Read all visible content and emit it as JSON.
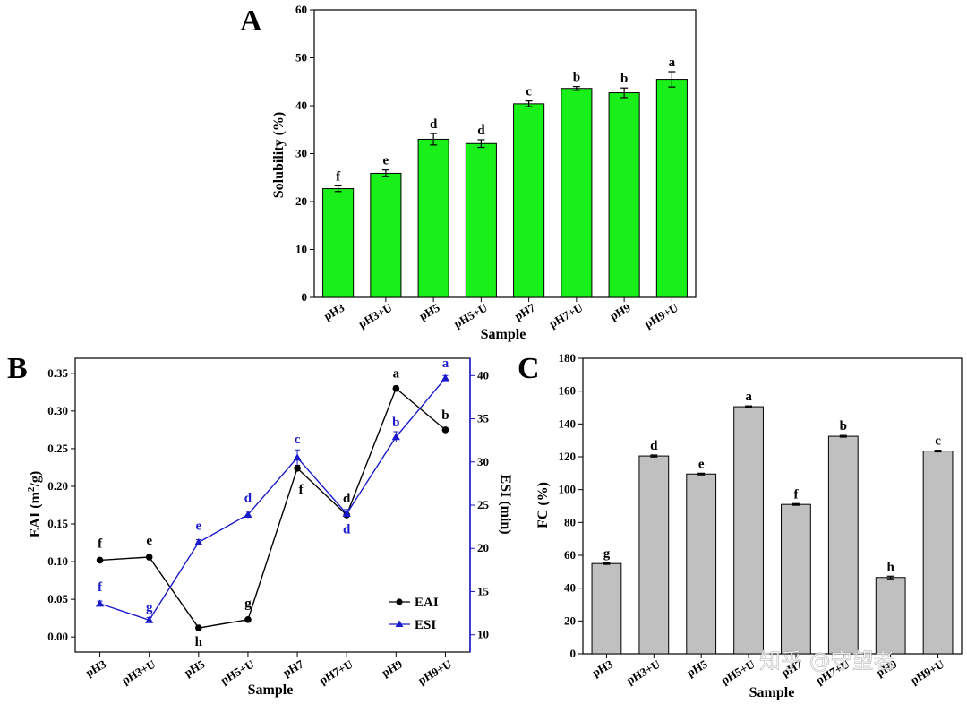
{
  "chart_data": [
    {
      "panel": "A",
      "type": "bar",
      "categories": [
        "pH3",
        "pH3+U",
        "pH5",
        "pH5+U",
        "pH7",
        "pH7+U",
        "pH9",
        "pH9+U"
      ],
      "values": [
        22.7,
        25.9,
        33.0,
        32.1,
        40.4,
        43.6,
        42.7,
        45.5
      ],
      "errors": [
        0.6,
        0.7,
        1.2,
        0.8,
        0.6,
        0.4,
        1.0,
        1.6
      ],
      "significance": [
        "f",
        "e",
        "d",
        "d",
        "c",
        "b",
        "b",
        "a"
      ],
      "xlabel": "Sample",
      "ylabel": "Solubility (%)",
      "ylim": [
        0,
        60
      ],
      "yticks": [
        0,
        10,
        20,
        30,
        40,
        50,
        60
      ],
      "color": "#19f019"
    },
    {
      "panel": "B",
      "type": "line",
      "categories": [
        "pH3",
        "pH3+U",
        "pH5",
        "pH5+U",
        "pH7",
        "pH7+U",
        "pH9",
        "pH9+U"
      ],
      "xlabel": "Sample",
      "series": [
        {
          "name": "EAI",
          "axis": "left",
          "color": "#000000",
          "values": [
            0.102,
            0.106,
            0.012,
            0.023,
            0.224,
            0.162,
            0.33,
            0.275
          ],
          "errors": [
            0.002,
            0.002,
            0.002,
            0.002,
            0.004,
            0.005,
            0.003,
            0.003
          ],
          "significance": [
            "f",
            "e",
            "h",
            "g",
            "f",
            "d",
            "a",
            "b"
          ]
        },
        {
          "name": "ESI",
          "axis": "right",
          "color": "#1a1acc",
          "values": [
            13.6,
            11.7,
            20.7,
            23.9,
            30.5,
            24.0,
            32.9,
            39.7
          ],
          "errors": [
            0.3,
            0.3,
            0.3,
            0.4,
            0.9,
            0.5,
            0.6,
            0.3
          ],
          "significance": [
            "f",
            "g",
            "e",
            "d",
            "c",
            "d",
            "b",
            "a"
          ]
        }
      ],
      "ylabel_left": "EAI (m²/g)",
      "ylabel_left_main": "EAI (m",
      "ylabel_left_sup": "2",
      "ylabel_left_end": "/g)",
      "ylim_left": [
        -0.02,
        0.37
      ],
      "yticks_left": [
        "0.00",
        "0.05",
        "0.10",
        "0.15",
        "0.20",
        "0.25",
        "0.30",
        "0.35"
      ],
      "ylabel_right": "ESI (min)",
      "ylim_right": [
        8,
        42
      ],
      "yticks_right": [
        10,
        15,
        20,
        25,
        30,
        35,
        40
      ],
      "legend": [
        "EAI",
        "ESI"
      ],
      "legend_position": "bottom-right"
    },
    {
      "panel": "C",
      "type": "bar",
      "categories": [
        "pH3",
        "pH3+U",
        "pH5",
        "pH5+U",
        "pH7",
        "pH7+U",
        "pH9",
        "pH9+U"
      ],
      "values": [
        55,
        120.5,
        109.5,
        150.5,
        91,
        132.5,
        46.5,
        123.5
      ],
      "errors": [
        0.5,
        0.6,
        0.5,
        0.5,
        0.5,
        0.5,
        0.8,
        0.5
      ],
      "significance": [
        "g",
        "d",
        "e",
        "a",
        "f",
        "b",
        "h",
        "c"
      ],
      "xlabel": "Sample",
      "ylabel": "FC (%)",
      "ylim": [
        0,
        180
      ],
      "yticks": [
        0,
        20,
        40,
        60,
        80,
        100,
        120,
        140,
        160,
        180
      ],
      "color": "#c0c0c0"
    }
  ],
  "watermark": "知乎 @守望者"
}
